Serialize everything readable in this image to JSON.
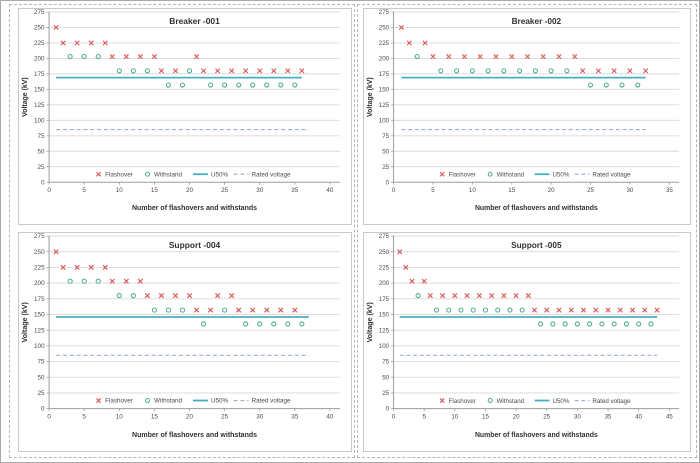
{
  "page": {
    "background": "#ffffff",
    "outer_border_color": "#a9a9a9",
    "frame_border_color": "#b5b5b5",
    "panel_border_color": "#c9c9c9"
  },
  "colors": {
    "flashover": "#dd5757",
    "withstand": "#4fae8c",
    "u50": "#4bacc6",
    "rated_voltage": "#9fafd9",
    "gridline": "#d9d9d9",
    "axis": "#9c9c9c",
    "tick_text": "#4a4a4a",
    "title_text": "#303030"
  },
  "chart_data": [
    {
      "type": "scatter",
      "title": "Breaker -001",
      "xlabel": "Number of flashovers and withstands",
      "ylabel": "Voltage (kV)",
      "xlim": [
        0,
        40
      ],
      "xtick_step": 5,
      "ylim": [
        0,
        275
      ],
      "ytick_step": 25,
      "grid": true,
      "legend_position": "bottom-inside",
      "legend": [
        "Flashover",
        "Withstand",
        "U50%",
        "Rated voltage"
      ],
      "series": [
        {
          "name": "Flashover",
          "type": "scatter",
          "marker": "x",
          "points": [
            [
              1,
              250
            ],
            [
              2,
              225
            ],
            [
              4,
              225
            ],
            [
              6,
              225
            ],
            [
              8,
              225
            ],
            [
              9,
              203
            ],
            [
              11,
              203
            ],
            [
              13,
              203
            ],
            [
              15,
              203
            ],
            [
              16,
              180
            ],
            [
              18,
              180
            ],
            [
              21,
              203
            ],
            [
              22,
              180
            ],
            [
              24,
              180
            ],
            [
              26,
              180
            ],
            [
              28,
              180
            ],
            [
              30,
              180
            ],
            [
              32,
              180
            ],
            [
              34,
              180
            ],
            [
              36,
              180
            ]
          ]
        },
        {
          "name": "Withstand",
          "type": "scatter",
          "marker": "circle",
          "points": [
            [
              3,
              203
            ],
            [
              5,
              203
            ],
            [
              7,
              203
            ],
            [
              10,
              180
            ],
            [
              12,
              180
            ],
            [
              14,
              180
            ],
            [
              17,
              157
            ],
            [
              19,
              157
            ],
            [
              20,
              180
            ],
            [
              23,
              157
            ],
            [
              25,
              157
            ],
            [
              27,
              157
            ],
            [
              29,
              157
            ],
            [
              31,
              157
            ],
            [
              33,
              157
            ],
            [
              35,
              157
            ]
          ]
        },
        {
          "name": "U50%",
          "type": "hline",
          "style": "solid",
          "y": 169,
          "x_start": 1,
          "x_end": 36
        },
        {
          "name": "Rated voltage",
          "type": "hline",
          "style": "dashed",
          "y": 85,
          "x_start": 1,
          "x_end": 37
        }
      ]
    },
    {
      "type": "scatter",
      "title": "Breaker -002",
      "xlabel": "Number of flashovers and withstands",
      "ylabel": "Voltage (kV)",
      "xlim": [
        0,
        35
      ],
      "xtick_step": 5,
      "ylim": [
        0,
        275
      ],
      "ytick_step": 25,
      "grid": true,
      "legend_position": "bottom-inside",
      "legend": [
        "Flashover",
        "Withstand",
        "U50%",
        "Rated voltage"
      ],
      "series": [
        {
          "name": "Flashover",
          "type": "scatter",
          "marker": "x",
          "points": [
            [
              1,
              250
            ],
            [
              2,
              225
            ],
            [
              4,
              225
            ],
            [
              5,
              203
            ],
            [
              7,
              203
            ],
            [
              9,
              203
            ],
            [
              11,
              203
            ],
            [
              13,
              203
            ],
            [
              15,
              203
            ],
            [
              17,
              203
            ],
            [
              19,
              203
            ],
            [
              21,
              203
            ],
            [
              23,
              203
            ],
            [
              24,
              180
            ],
            [
              26,
              180
            ],
            [
              28,
              180
            ],
            [
              30,
              180
            ],
            [
              32,
              180
            ]
          ]
        },
        {
          "name": "Withstand",
          "type": "scatter",
          "marker": "circle",
          "points": [
            [
              3,
              203
            ],
            [
              6,
              180
            ],
            [
              8,
              180
            ],
            [
              10,
              180
            ],
            [
              12,
              180
            ],
            [
              14,
              180
            ],
            [
              16,
              180
            ],
            [
              18,
              180
            ],
            [
              20,
              180
            ],
            [
              22,
              180
            ],
            [
              25,
              157
            ],
            [
              27,
              157
            ],
            [
              29,
              157
            ],
            [
              31,
              157
            ]
          ]
        },
        {
          "name": "U50%",
          "type": "hline",
          "style": "solid",
          "y": 169,
          "x_start": 1,
          "x_end": 32
        },
        {
          "name": "Rated voltage",
          "type": "hline",
          "style": "dashed",
          "y": 85,
          "x_start": 1,
          "x_end": 32
        }
      ]
    },
    {
      "type": "scatter",
      "title": "Support -004",
      "xlabel": "Number of flashovers and withstands",
      "ylabel": "Voltage (kV)",
      "xlim": [
        0,
        40
      ],
      "xtick_step": 5,
      "ylim": [
        0,
        275
      ],
      "ytick_step": 25,
      "grid": true,
      "legend_position": "bottom-inside",
      "legend": [
        "Flashover",
        "Withstand",
        "U50%",
        "Rated voltage"
      ],
      "series": [
        {
          "name": "Flashover",
          "type": "scatter",
          "marker": "x",
          "points": [
            [
              1,
              250
            ],
            [
              2,
              225
            ],
            [
              4,
              225
            ],
            [
              6,
              225
            ],
            [
              8,
              225
            ],
            [
              9,
              203
            ],
            [
              11,
              203
            ],
            [
              13,
              203
            ],
            [
              14,
              180
            ],
            [
              16,
              180
            ],
            [
              18,
              180
            ],
            [
              20,
              180
            ],
            [
              21,
              157
            ],
            [
              23,
              157
            ],
            [
              24,
              180
            ],
            [
              26,
              180
            ],
            [
              27,
              157
            ],
            [
              29,
              157
            ],
            [
              31,
              157
            ],
            [
              33,
              157
            ],
            [
              35,
              157
            ]
          ]
        },
        {
          "name": "Withstand",
          "type": "scatter",
          "marker": "circle",
          "points": [
            [
              3,
              203
            ],
            [
              5,
              203
            ],
            [
              7,
              203
            ],
            [
              10,
              180
            ],
            [
              12,
              180
            ],
            [
              15,
              157
            ],
            [
              17,
              157
            ],
            [
              19,
              157
            ],
            [
              22,
              135
            ],
            [
              25,
              157
            ],
            [
              28,
              135
            ],
            [
              30,
              135
            ],
            [
              32,
              135
            ],
            [
              34,
              135
            ],
            [
              36,
              135
            ]
          ]
        },
        {
          "name": "U50%",
          "type": "hline",
          "style": "solid",
          "y": 146,
          "x_start": 1,
          "x_end": 37
        },
        {
          "name": "Rated voltage",
          "type": "hline",
          "style": "dashed",
          "y": 85,
          "x_start": 1,
          "x_end": 37
        }
      ]
    },
    {
      "type": "scatter",
      "title": "Support -005",
      "xlabel": "Number of flashovers and withstands",
      "ylabel": "Voltage (kV)",
      "xlim": [
        0,
        45
      ],
      "xtick_step": 5,
      "ylim": [
        0,
        275
      ],
      "ytick_step": 25,
      "grid": true,
      "legend_position": "bottom-inside",
      "legend": [
        "Flashover",
        "Withstand",
        "U50%",
        "Rated voltage"
      ],
      "series": [
        {
          "name": "Flashover",
          "type": "scatter",
          "marker": "x",
          "points": [
            [
              1,
              250
            ],
            [
              2,
              225
            ],
            [
              3,
              203
            ],
            [
              5,
              203
            ],
            [
              6,
              180
            ],
            [
              8,
              180
            ],
            [
              10,
              180
            ],
            [
              12,
              180
            ],
            [
              14,
              180
            ],
            [
              16,
              180
            ],
            [
              18,
              180
            ],
            [
              20,
              180
            ],
            [
              22,
              180
            ],
            [
              23,
              157
            ],
            [
              25,
              157
            ],
            [
              27,
              157
            ],
            [
              29,
              157
            ],
            [
              31,
              157
            ],
            [
              33,
              157
            ],
            [
              35,
              157
            ],
            [
              37,
              157
            ],
            [
              39,
              157
            ],
            [
              41,
              157
            ],
            [
              43,
              157
            ]
          ]
        },
        {
          "name": "Withstand",
          "type": "scatter",
          "marker": "circle",
          "points": [
            [
              4,
              180
            ],
            [
              7,
              157
            ],
            [
              9,
              157
            ],
            [
              11,
              157
            ],
            [
              13,
              157
            ],
            [
              15,
              157
            ],
            [
              17,
              157
            ],
            [
              19,
              157
            ],
            [
              21,
              157
            ],
            [
              24,
              135
            ],
            [
              26,
              135
            ],
            [
              28,
              135
            ],
            [
              30,
              135
            ],
            [
              32,
              135
            ],
            [
              34,
              135
            ],
            [
              36,
              135
            ],
            [
              38,
              135
            ],
            [
              40,
              135
            ],
            [
              42,
              135
            ]
          ]
        },
        {
          "name": "U50%",
          "type": "hline",
          "style": "solid",
          "y": 146,
          "x_start": 1,
          "x_end": 43
        },
        {
          "name": "Rated voltage",
          "type": "hline",
          "style": "dashed",
          "y": 85,
          "x_start": 1,
          "x_end": 43
        }
      ]
    }
  ]
}
